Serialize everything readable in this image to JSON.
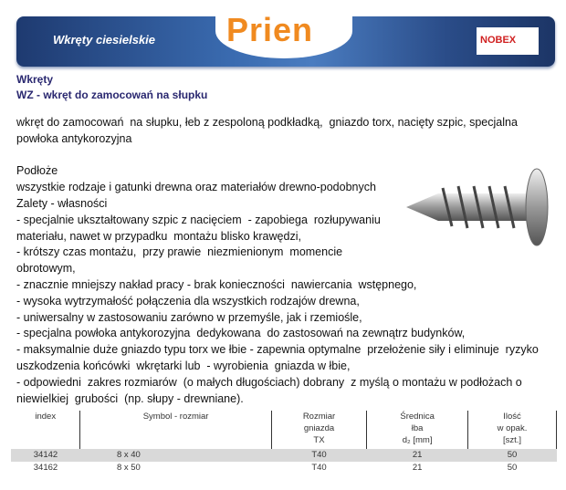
{
  "header": {
    "title": "Wkręty ciesielskie",
    "logo": "Prien",
    "partner_logo": "NOBEX"
  },
  "category": "Wkręty",
  "product_title": "WZ - wkręt do zamocowań  na słupku",
  "body_lines": [
    "wkręt do zamocowań  na słupku, łeb z zespoloną podkładką,  gniazdo torx, nacięty szpic, specjalna",
    "powłoka antykorozyjna",
    "",
    "Podłoże",
    "wszystkie rodzaje i gatunki drewna oraz materiałów drewno-podobnych",
    "Zalety - własności",
    "- specjalnie ukształtowany szpic z nacięciem  - zapobiega  rozłupywaniu",
    "materiału, nawet w przypadku  montażu blisko krawędzi,",
    "- krótszy czas montażu,  przy prawie  niezmienionym  momencie",
    "obrotowym,",
    "- znacznie mniejszy nakład pracy - brak konieczności  nawiercania  wstępnego,",
    "- wysoka wytrzymałość połączenia dla wszystkich rodzajów drewna,",
    "- uniwersalny w zastosowaniu zarówno w przemyśle, jak i rzemiośle,",
    "- specjalna powłoka antykorozyjna  dedykowana  do zastosowań na zewnątrz budynków,",
    "- maksymalnie duże gniazdo typu torx we łbie - zapewnia optymalne  przełożenie siły i eliminuje  ryzyko",
    "uszkodzenia końcówki  wkrętarki lub  - wyrobienia  gniazda w łbie,",
    "- odpowiedni  zakres rozmiarów  (o małych długościach) dobrany  z myślą o montażu w podłożach o",
    "niewielkiej  grubości  (np. słupy - drewniane)."
  ],
  "table": {
    "headers": [
      "index",
      "Symbol - rozmiar",
      "Rozmiar\ngniazda\nTX",
      "Średnica\nłba\nd₂ [mm]",
      "Ilość\nw opak.\n[szt.]"
    ],
    "rows": [
      [
        "34142",
        "8 x 40",
        "T40",
        "21",
        "50"
      ],
      [
        "34162",
        "8 x 50",
        "T40",
        "21",
        "50"
      ]
    ]
  },
  "colors": {
    "banner": "#2a4c88",
    "heading": "#2a2870",
    "logo": "#f08a20",
    "row_shade": "#d9d9d9"
  }
}
